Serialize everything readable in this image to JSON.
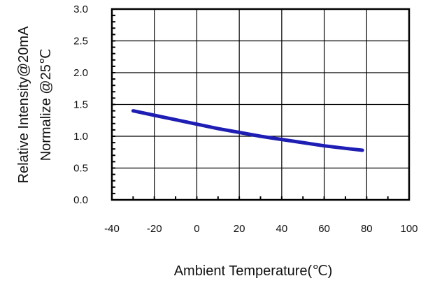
{
  "chart_data": {
    "type": "line",
    "title": "",
    "xlabel": "Ambient Temperature(℃)",
    "ylabel": "Relative Intensity@20mA",
    "ylabel2": "Normalize @25℃",
    "xlim": [
      -40,
      100
    ],
    "ylim": [
      0,
      3.0
    ],
    "x_ticks": [
      "-40",
      "-20",
      "0",
      "20",
      "40",
      "60",
      "80",
      "100"
    ],
    "y_ticks": [
      "0.0",
      "0.5",
      "1.0",
      "1.5",
      "2.0",
      "2.5",
      "3.0"
    ],
    "grid": true,
    "series": [
      {
        "color": "#1e1eb4",
        "x": [
          -30,
          -20,
          -10,
          0,
          10,
          20,
          30,
          40,
          50,
          60,
          70,
          78
        ],
        "y": [
          1.4,
          1.33,
          1.26,
          1.19,
          1.12,
          1.06,
          1.0,
          0.95,
          0.9,
          0.85,
          0.81,
          0.78
        ]
      }
    ]
  }
}
